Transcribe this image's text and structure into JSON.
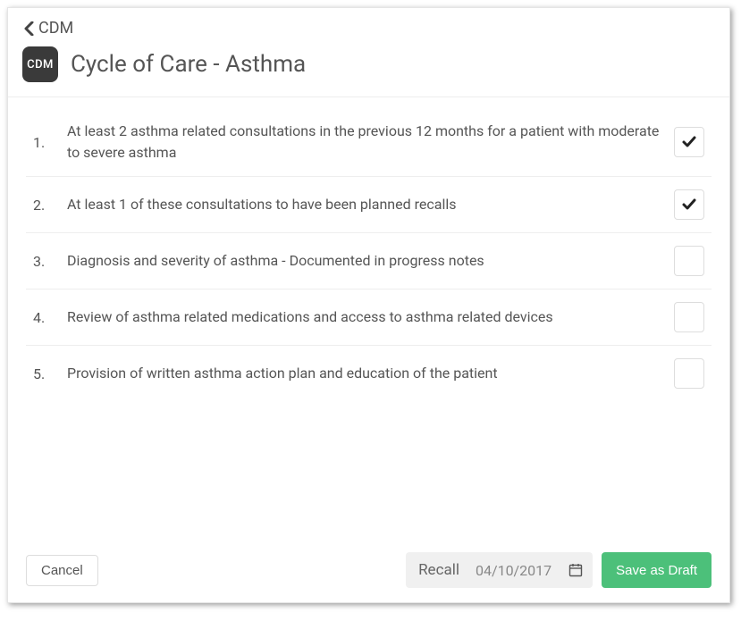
{
  "breadcrumb": {
    "label": "CDM"
  },
  "badge": {
    "text": "CDM"
  },
  "title": "Cycle of Care - Asthma",
  "items": [
    {
      "num": "1.",
      "text": "At least 2 asthma related consultations in the previous 12 months for a patient with moderate to severe asthma",
      "checked": true
    },
    {
      "num": "2.",
      "text": "At least 1 of these consultations to have been planned recalls",
      "checked": true
    },
    {
      "num": "3.",
      "text": "Diagnosis and severity of asthma - Documented in progress notes",
      "checked": false
    },
    {
      "num": "4.",
      "text": "Review of asthma related medications and access to asthma related devices",
      "checked": false
    },
    {
      "num": "5.",
      "text": "Provision of written asthma action plan and education of the patient",
      "checked": false
    }
  ],
  "footer": {
    "cancel": "Cancel",
    "recall_label": "Recall",
    "recall_date": "04/10/2017",
    "save": "Save as Draft"
  },
  "colors": {
    "accent_green": "#4cc07a",
    "text": "#555555",
    "border": "#eeeeee",
    "badge_bg": "#3a3a3a"
  }
}
